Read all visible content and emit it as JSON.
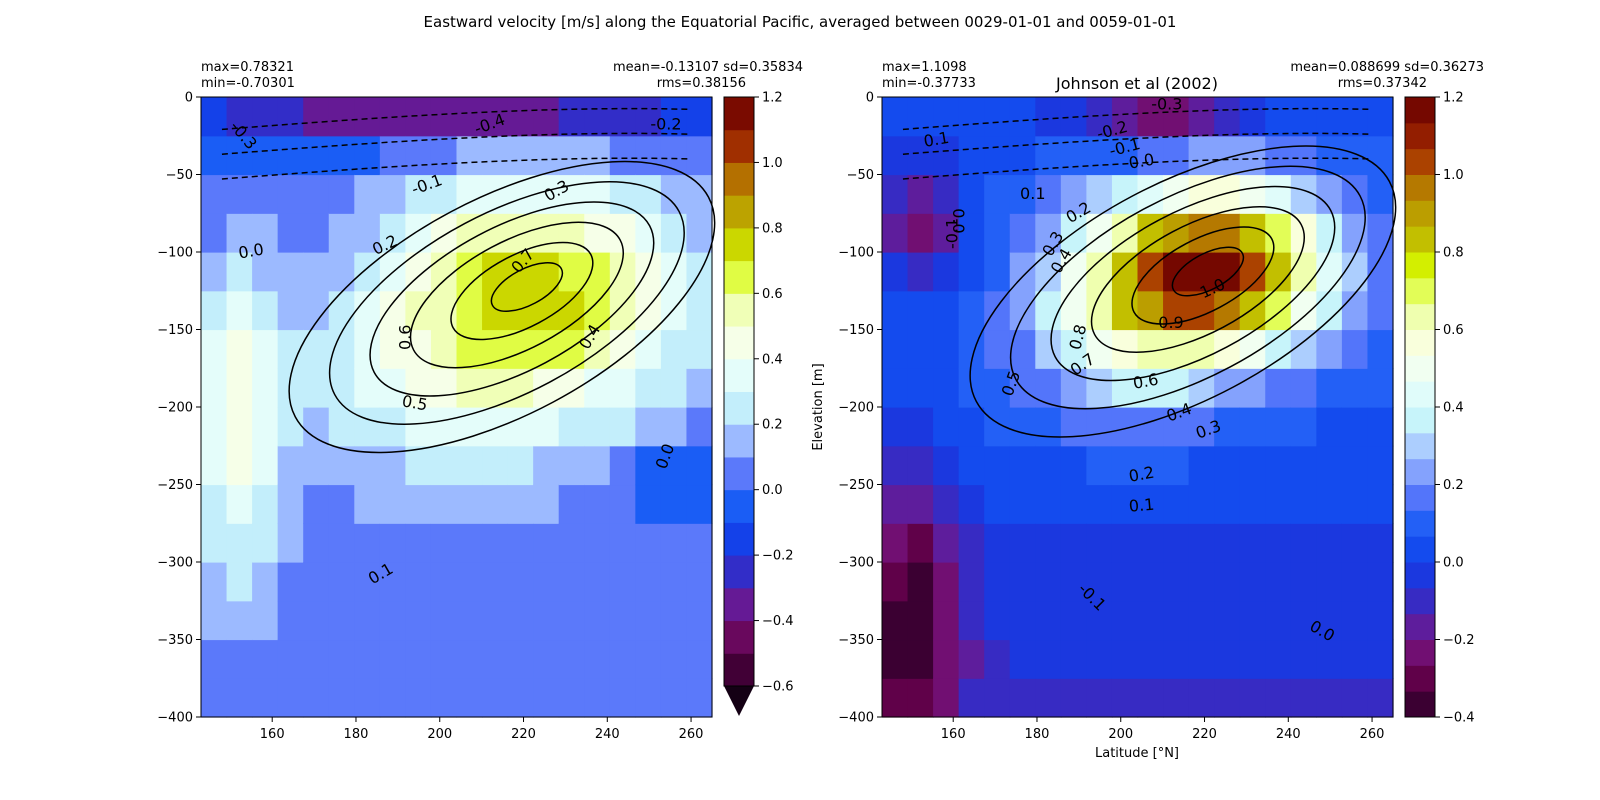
{
  "figure": {
    "suptitle": "Eastward velocity [m/s] along the Equatorial Pacific, averaged between 0029-01-01 and 0059-01-01"
  },
  "chart_data": [
    {
      "type": "heatmap",
      "name": "model",
      "title": "",
      "xlabel": "",
      "ylabel": "",
      "xlim": [
        143,
        265
      ],
      "ylim": [
        -400,
        0
      ],
      "xticks": [
        160,
        180,
        200,
        220,
        240,
        260
      ],
      "yticks": [
        0,
        -50,
        -100,
        -150,
        -200,
        -250,
        -300,
        -350,
        -400
      ],
      "stats": {
        "max": "max=0.78321",
        "min": "min=-0.70301",
        "mean_sd": "mean=-0.13107 sd=0.35834",
        "rms": "rms=0.38156"
      },
      "colorbar": {
        "ticks": [
          1.2,
          1.0,
          0.8,
          0.6,
          0.4,
          0.2,
          0.0,
          -0.2,
          -0.4,
          -0.6
        ],
        "vmin": -0.6,
        "vmax": 1.2,
        "extend": "min",
        "levels": 18
      },
      "core": {
        "x": 222,
        "depth": -120,
        "value": 0.78
      },
      "contour_labels": [
        {
          "text": "-0.4",
          "x": 212,
          "depth": -18,
          "angle": -20
        },
        {
          "text": "-0.3",
          "x": 153,
          "depth": -25,
          "angle": 50
        },
        {
          "text": "-0.2",
          "x": 254,
          "depth": -18,
          "angle": 0
        },
        {
          "text": "-0.1",
          "x": 197,
          "depth": -57,
          "angle": -20
        },
        {
          "text": "0.0",
          "x": 155,
          "depth": -100,
          "angle": -10
        },
        {
          "text": "0.2",
          "x": 187,
          "depth": -96,
          "angle": -25
        },
        {
          "text": "0.3",
          "x": 228,
          "depth": -61,
          "angle": -30
        },
        {
          "text": "0.7",
          "x": 220,
          "depth": -106,
          "angle": -50
        },
        {
          "text": "0.6",
          "x": 192,
          "depth": -155,
          "angle": -90
        },
        {
          "text": "0.4",
          "x": 236,
          "depth": -155,
          "angle": -60
        },
        {
          "text": "0.5",
          "x": 194,
          "depth": -198,
          "angle": 10
        },
        {
          "text": "0.0",
          "x": 254,
          "depth": -232,
          "angle": -70
        },
        {
          "text": "0.1",
          "x": 186,
          "depth": -308,
          "angle": -30
        }
      ]
    },
    {
      "type": "heatmap",
      "name": "observation",
      "title": "Johnson et al (2002)",
      "xlabel": "Latitude [°N]",
      "ylabel": "Elevation [m]",
      "xlim": [
        143,
        265
      ],
      "ylim": [
        -400,
        0
      ],
      "xticks": [
        160,
        180,
        200,
        220,
        240,
        260
      ],
      "yticks": [
        0,
        -50,
        -100,
        -150,
        -200,
        -250,
        -300,
        -350,
        -400
      ],
      "stats": {
        "max": "max=1.1098",
        "min": "min=-0.37733",
        "mean_sd": "mean=0.088699 sd=0.36273",
        "rms": "rms=0.37342"
      },
      "colorbar": {
        "ticks": [
          1.2,
          1.0,
          0.8,
          0.6,
          0.4,
          0.2,
          0.0,
          -0.2,
          -0.4
        ],
        "vmin": -0.4,
        "vmax": 1.2,
        "extend": "neither",
        "levels": 24
      },
      "core": {
        "x": 222,
        "depth": -110,
        "value": 1.1
      },
      "contour_labels": [
        {
          "text": "-0.3",
          "x": 211,
          "depth": -5,
          "angle": 0
        },
        {
          "text": "-0.2",
          "x": 198,
          "depth": -22,
          "angle": -15
        },
        {
          "text": "-0.1",
          "x": 201,
          "depth": -33,
          "angle": -15
        },
        {
          "text": "0.0",
          "x": 205,
          "depth": -42,
          "angle": -10
        },
        {
          "text": "0.1",
          "x": 156,
          "depth": -28,
          "angle": -10
        },
        {
          "text": "0.1",
          "x": 179,
          "depth": -63,
          "angle": 0
        },
        {
          "text": "0.0",
          "x": 161,
          "depth": -80,
          "angle": 90
        },
        {
          "text": "-0.1",
          "x": 160,
          "depth": -88,
          "angle": -90
        },
        {
          "text": "0.2",
          "x": 190,
          "depth": -75,
          "angle": -30
        },
        {
          "text": "0.3",
          "x": 184,
          "depth": -95,
          "angle": -60
        },
        {
          "text": "0.4",
          "x": 186,
          "depth": -106,
          "angle": -60
        },
        {
          "text": "1.0",
          "x": 222,
          "depth": -124,
          "angle": -25
        },
        {
          "text": "0.9",
          "x": 212,
          "depth": -146,
          "angle": 0
        },
        {
          "text": "0.8",
          "x": 190,
          "depth": -155,
          "angle": -75
        },
        {
          "text": "0.7",
          "x": 191,
          "depth": -173,
          "angle": -35
        },
        {
          "text": "0.5",
          "x": 174,
          "depth": -185,
          "angle": -70
        },
        {
          "text": "0.6",
          "x": 206,
          "depth": -184,
          "angle": -10
        },
        {
          "text": "0.4",
          "x": 214,
          "depth": -204,
          "angle": -20
        },
        {
          "text": "0.3",
          "x": 221,
          "depth": -215,
          "angle": -20
        },
        {
          "text": "0.2",
          "x": 205,
          "depth": -244,
          "angle": -10
        },
        {
          "text": "0.1",
          "x": 205,
          "depth": -264,
          "angle": -5
        },
        {
          "text": "-0.1",
          "x": 193,
          "depth": -323,
          "angle": 45
        },
        {
          "text": "0.0",
          "x": 248,
          "depth": -345,
          "angle": 30
        }
      ]
    }
  ]
}
